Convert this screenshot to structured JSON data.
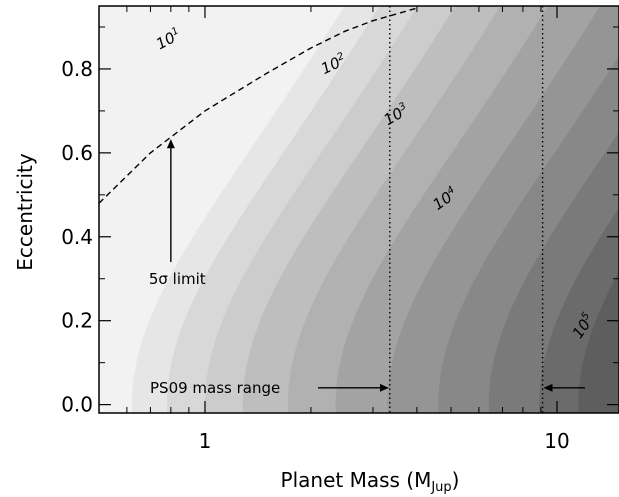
{
  "chart_data": {
    "type": "contour",
    "xlabel_main": "Planet Mass (M",
    "xlabel_sub": "Jup",
    "xlabel_close": ")",
    "ylabel": "Eccentricity",
    "x_scale": "log",
    "xlim": [
      0.5,
      15
    ],
    "ylim": [
      -0.02,
      0.95
    ],
    "x_ticks": [
      {
        "value": 1,
        "label": "1"
      },
      {
        "value": 10,
        "label": "10"
      }
    ],
    "y_ticks": [
      {
        "value": 0.0,
        "label": "0.0"
      },
      {
        "value": 0.2,
        "label": "0.2"
      },
      {
        "value": 0.4,
        "label": "0.4"
      },
      {
        "value": 0.6,
        "label": "0.6"
      },
      {
        "value": 0.8,
        "label": "0.8"
      }
    ],
    "contour_levels": [
      {
        "base": "10",
        "exp": "1",
        "x": 0.8,
        "y": 0.86
      },
      {
        "base": "10",
        "exp": "2",
        "x": 2.35,
        "y": 0.8
      },
      {
        "base": "10",
        "exp": "3",
        "x": 3.55,
        "y": 0.68
      },
      {
        "base": "10",
        "exp": "4",
        "x": 4.9,
        "y": 0.48
      },
      {
        "base": "10",
        "exp": "5",
        "x": 12.2,
        "y": 0.18
      }
    ],
    "five_sigma_limit": {
      "label": "5σ limit",
      "curve": [
        [
          0.5,
          0.48
        ],
        [
          0.7,
          0.6
        ],
        [
          1.0,
          0.7
        ],
        [
          1.5,
          0.79
        ],
        [
          2.0,
          0.85
        ],
        [
          2.5,
          0.89
        ],
        [
          3.0,
          0.915
        ],
        [
          4.0,
          0.945
        ]
      ],
      "arrow_x": 0.8,
      "arrow_from_y": 0.34,
      "arrow_to_y": 0.63
    },
    "mass_range": {
      "label": "PS09 mass range",
      "min": 3.35,
      "max": 9.1,
      "arrow_y": 0.04
    }
  }
}
